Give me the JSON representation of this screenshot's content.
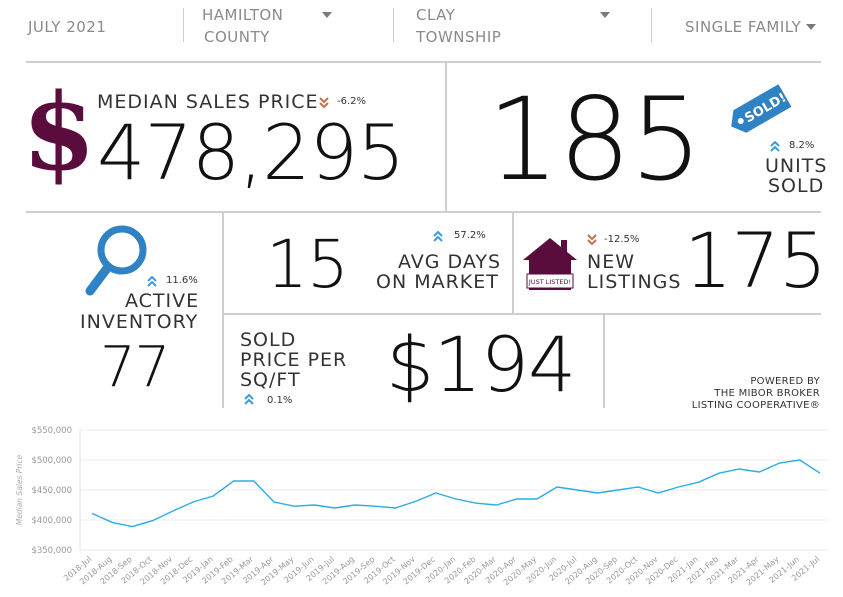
{
  "filters": {
    "period": "JULY 2021",
    "county": [
      "HAMILTON",
      "COUNTY"
    ],
    "township": [
      "CLAY",
      "TOWNSHIP"
    ],
    "property_type": "SINGLE FAMILY"
  },
  "median_price": {
    "label": "MEDIAN SALES PRICE",
    "value": "478,295",
    "change": "-6.2%",
    "direction": "down"
  },
  "units_sold": {
    "value": "185",
    "label": [
      "UNITS",
      "SOLD"
    ],
    "change": "8.2%",
    "direction": "up",
    "tag_text": "SOLD!"
  },
  "active_inventory": {
    "label": [
      "ACTIVE",
      "INVENTORY"
    ],
    "value": "77",
    "change": "11.6%",
    "direction": "up"
  },
  "avg_days": {
    "value": "15",
    "label": [
      "AVG DAYS",
      "ON MARKET"
    ],
    "change": "57.2%",
    "direction": "up"
  },
  "new_listings": {
    "label": [
      "NEW",
      "LISTINGS"
    ],
    "value": "175",
    "change": "-12.5%",
    "direction": "down",
    "sign_text": "JUST LISTED!"
  },
  "price_sqft": {
    "label": [
      "SOLD",
      "PRICE PER",
      "SQ/FT"
    ],
    "value": "$194",
    "change": "0.1%",
    "direction": "up"
  },
  "powered_by": [
    "POWERED BY",
    "THE MIBOR BROKER",
    "LISTING COOPERATIVE®"
  ],
  "colors": {
    "brand": "#5a0d3c",
    "tag_blue": "#2f83c4",
    "up": "#3a9be0",
    "down": "#c0704a",
    "line": "#29aee3"
  },
  "chart_data": {
    "type": "line",
    "ylabel": "Median Sales Price",
    "ylim": [
      350000,
      550000
    ],
    "yticks": [
      "$350,000",
      "$400,000",
      "$450,000",
      "$500,000",
      "$550,000"
    ],
    "ytick_values": [
      350000,
      400000,
      450000,
      500000,
      550000
    ],
    "grid": true,
    "categories": [
      "2018-Jul",
      "2018-Aug",
      "2018-Sep",
      "2018-Oct",
      "2018-Nov",
      "2018-Dec",
      "2019-Jan",
      "2019-Feb",
      "2019-Mar",
      "2019-Apr",
      "2019-May",
      "2019-Jun",
      "2019-Jul",
      "2019-Aug",
      "2019-Sep",
      "2019-Oct",
      "2019-Nov",
      "2019-Dec",
      "2020-Jan",
      "2020-Feb",
      "2020-Mar",
      "2020-Apr",
      "2020-May",
      "2020-Jun",
      "2020-Jul",
      "2020-Aug",
      "2020-Sep",
      "2020-Oct",
      "2020-Nov",
      "2020-Dec",
      "2021-Jan",
      "2021-Feb",
      "2021-Mar",
      "2021-Apr",
      "2021-May",
      "2021-Jun",
      "2021-Jul"
    ],
    "series": [
      {
        "values": [
          411000,
          396000,
          389000,
          399000,
          415000,
          430000,
          440000,
          465000,
          465000,
          430000,
          423000,
          425000,
          420000,
          425000,
          423000,
          420000,
          431000,
          445000,
          435000,
          428000,
          425000,
          435000,
          435000,
          455000,
          450000,
          445000,
          450000,
          455000,
          445000,
          455000,
          463000,
          478000,
          485000,
          480000,
          495000,
          500000,
          478000
        ]
      }
    ]
  }
}
